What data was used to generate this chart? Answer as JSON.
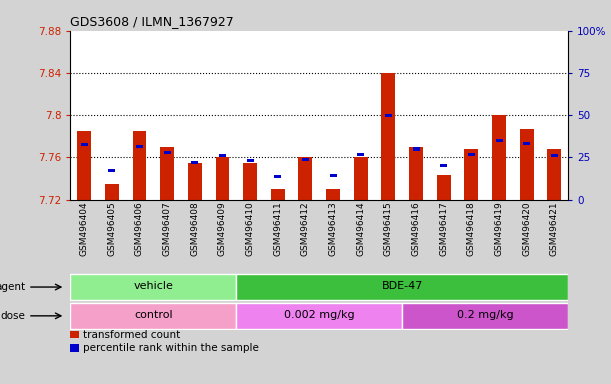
{
  "title": "GDS3608 / ILMN_1367927",
  "samples": [
    "GSM496404",
    "GSM496405",
    "GSM496406",
    "GSM496407",
    "GSM496408",
    "GSM496409",
    "GSM496410",
    "GSM496411",
    "GSM496412",
    "GSM496413",
    "GSM496414",
    "GSM496415",
    "GSM496416",
    "GSM496417",
    "GSM496418",
    "GSM496419",
    "GSM496420",
    "GSM496421"
  ],
  "red_values": [
    7.785,
    7.735,
    7.785,
    7.77,
    7.755,
    7.76,
    7.755,
    7.73,
    7.76,
    7.73,
    7.76,
    7.84,
    7.77,
    7.743,
    7.768,
    7.8,
    7.787,
    7.768
  ],
  "blue_values": [
    7.772,
    7.748,
    7.77,
    7.765,
    7.755,
    7.762,
    7.757,
    7.742,
    7.758,
    7.743,
    7.763,
    7.8,
    7.768,
    7.752,
    7.763,
    7.776,
    7.773,
    7.762
  ],
  "ymin": 7.72,
  "ymax": 7.88,
  "yticks": [
    7.72,
    7.76,
    7.8,
    7.84,
    7.88
  ],
  "ytick_labels": [
    "7.72",
    "7.76",
    "7.8",
    "7.84",
    "7.88"
  ],
  "right_yticks": [
    0,
    25,
    50,
    75,
    100
  ],
  "right_ytick_labels": [
    "0",
    "25",
    "50",
    "75",
    "100%"
  ],
  "grid_lines": [
    7.76,
    7.8,
    7.84
  ],
  "agent_groups": [
    {
      "label": "vehicle",
      "start": 0,
      "end": 6,
      "color": "#90EE90"
    },
    {
      "label": "BDE-47",
      "start": 6,
      "end": 18,
      "color": "#3CBF3C"
    }
  ],
  "dose_groups": [
    {
      "label": "control",
      "start": 0,
      "end": 6,
      "color": "#F5A0C8"
    },
    {
      "label": "0.002 mg/kg",
      "start": 6,
      "end": 12,
      "color": "#EE82EE"
    },
    {
      "label": "0.2 mg/kg",
      "start": 12,
      "end": 18,
      "color": "#CC55CC"
    }
  ],
  "bar_color": "#CC2200",
  "dot_color": "#0000CC",
  "fig_bg": "#D3D3D3",
  "plot_bg": "#FFFFFF",
  "left_label_color": "#CC2200",
  "right_label_color": "#0000BB",
  "legend_items": [
    {
      "color": "#CC2200",
      "label": "transformed count"
    },
    {
      "color": "#0000CC",
      "label": "percentile rank within the sample"
    }
  ]
}
